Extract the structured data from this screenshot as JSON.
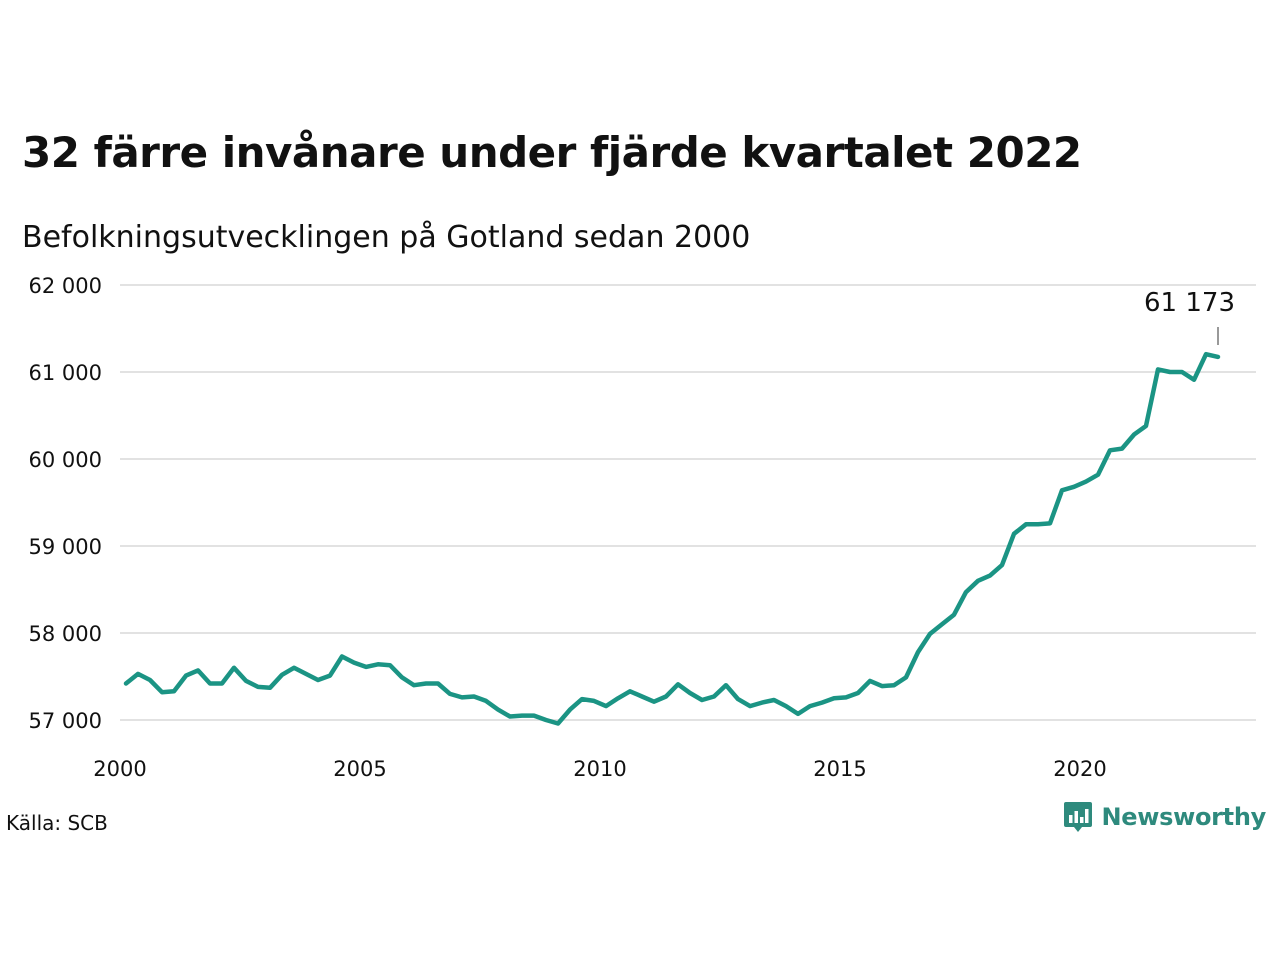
{
  "header": {
    "title": "32 färre invånare under fjärde kvartalet 2022",
    "subtitle": "Befolkningsutvecklingen på Gotland sedan 2000"
  },
  "footer": {
    "source": "Källa: SCB",
    "brand": "Newsworthy"
  },
  "colors": {
    "line": "#1b9484",
    "grid": "#e2e2e2",
    "brand": "#2e8a7d"
  },
  "chart_data": {
    "type": "line",
    "x_tick_labels": [
      "2000",
      "2005",
      "2010",
      "2015",
      "2020"
    ],
    "x_ticks": [
      2000,
      2005,
      2010,
      2015,
      2020
    ],
    "y_tick_labels": [
      "57 000",
      "58 000",
      "59 000",
      "60 000",
      "61 000",
      "62 000"
    ],
    "y_ticks": [
      57000,
      58000,
      59000,
      60000,
      61000,
      62000
    ],
    "xlim": [
      2000,
      2023.5
    ],
    "ylim": [
      56900,
      62000
    ],
    "grid": true,
    "last_value_label": "61 173",
    "series": [
      {
        "frequency": "quarterly",
        "start": "2000 Q1",
        "values": [
          57420,
          57530,
          57460,
          57320,
          57330,
          57510,
          57570,
          57420,
          57420,
          57600,
          57450,
          57380,
          57370,
          57520,
          57600,
          57530,
          57460,
          57510,
          57730,
          57660,
          57610,
          57640,
          57630,
          57490,
          57400,
          57420,
          57420,
          57300,
          57260,
          57270,
          57220,
          57120,
          57040,
          57050,
          57050,
          57000,
          56960,
          57120,
          57240,
          57220,
          57160,
          57250,
          57330,
          57270,
          57210,
          57270,
          57410,
          57310,
          57230,
          57270,
          57400,
          57240,
          57160,
          57200,
          57230,
          57160,
          57070,
          57160,
          57200,
          57250,
          57260,
          57310,
          57450,
          57390,
          57400,
          57490,
          57780,
          57990,
          58100,
          58210,
          58470,
          58600,
          58660,
          58780,
          59140,
          59250,
          59250,
          59260,
          59640,
          59680,
          59740,
          59820,
          60100,
          60120,
          60280,
          60380,
          61030,
          61000,
          61000,
          60910,
          61205,
          61173
        ]
      }
    ]
  }
}
